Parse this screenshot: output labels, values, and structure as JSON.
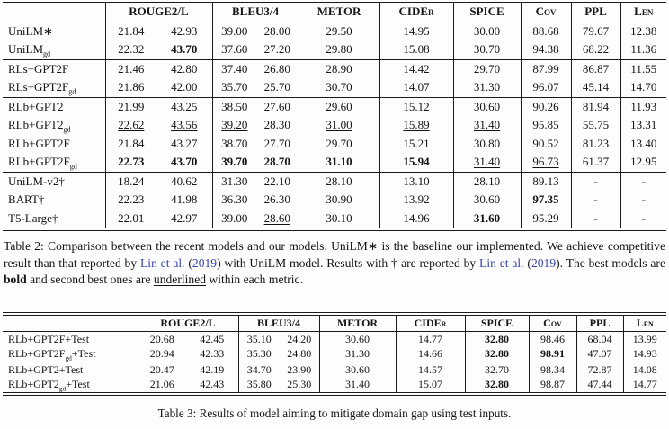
{
  "colors": {
    "citation": "#3545b0",
    "text": "#141414",
    "rule": "#1a1a1a"
  },
  "table2": {
    "headers": [
      {
        "label": "ROUGE2/L",
        "span": 2
      },
      {
        "label": "BLEU3/4",
        "span": 2
      },
      {
        "label": "METOR",
        "span": 1
      },
      {
        "label": "CIDEr",
        "span": 1
      },
      {
        "label": "SPICE",
        "span": 1
      },
      {
        "label": "Cov",
        "span": 1
      },
      {
        "label": "PPL",
        "span": 1
      },
      {
        "label": "Len",
        "span": 1
      }
    ],
    "rows": [
      {
        "label": [
          [
            "UniLM∗"
          ]
        ],
        "values": [
          "21.84",
          "42.93",
          "39.00",
          "28.00",
          "29.50",
          "14.95",
          "30.00",
          "88.68",
          "79.67",
          "12.38"
        ],
        "styles": [
          "",
          "",
          "",
          "",
          "",
          "",
          "",
          "",
          "",
          ""
        ]
      },
      {
        "label": [
          [
            "UniLM"
          ],
          [
            "gd",
            "sub"
          ]
        ],
        "values": [
          "22.32",
          "43.70",
          "37.60",
          "27.20",
          "29.80",
          "15.08",
          "30.70",
          "94.38",
          "68.22",
          "11.36"
        ],
        "styles": [
          "",
          "b",
          "",
          "",
          "",
          "",
          "",
          "",
          "",
          ""
        ],
        "sep": true
      },
      {
        "label": [
          [
            "RLs+GPT2F"
          ]
        ],
        "values": [
          "21.46",
          "42.80",
          "37.40",
          "26.80",
          "28.90",
          "14.42",
          "29.70",
          "87.99",
          "86.87",
          "11.55"
        ],
        "styles": [
          "",
          "",
          "",
          "",
          "",
          "",
          "",
          "",
          "",
          ""
        ]
      },
      {
        "label": [
          [
            "RLs+GPT2F"
          ],
          [
            "gd",
            "sub"
          ]
        ],
        "values": [
          "21.86",
          "42.00",
          "35.70",
          "25.70",
          "30.70",
          "14.07",
          "31.30",
          "96.07",
          "45.14",
          "14.70"
        ],
        "styles": [
          "",
          "",
          "",
          "",
          "",
          "",
          "",
          "",
          "",
          ""
        ],
        "sep": true
      },
      {
        "label": [
          [
            "RLb+GPT2"
          ]
        ],
        "values": [
          "21.99",
          "43.25",
          "38.50",
          "27.60",
          "29.60",
          "15.12",
          "30.60",
          "90.26",
          "81.94",
          "11.93"
        ],
        "styles": [
          "",
          "",
          "",
          "",
          "",
          "",
          "",
          "",
          "",
          ""
        ]
      },
      {
        "label": [
          [
            "RLb+GPT2"
          ],
          [
            "gd",
            "sub"
          ]
        ],
        "values": [
          "22.62",
          "43.56",
          "39.20",
          "28.30",
          "31.00",
          "15.89",
          "31.40",
          "95.85",
          "55.75",
          "13.31"
        ],
        "styles": [
          "u",
          "u",
          "u",
          "",
          "u",
          "u",
          "u",
          "",
          "",
          ""
        ]
      },
      {
        "label": [
          [
            "RLb+GPT2F"
          ]
        ],
        "values": [
          "21.84",
          "43.27",
          "38.70",
          "27.70",
          "29.70",
          "15.21",
          "30.80",
          "90.52",
          "81.23",
          "13.40"
        ],
        "styles": [
          "",
          "",
          "",
          "",
          "",
          "",
          "",
          "",
          "",
          ""
        ]
      },
      {
        "label": [
          [
            "RLb+GPT2F"
          ],
          [
            "gd",
            "sub"
          ]
        ],
        "values": [
          "22.73",
          "43.70",
          "39.70",
          "28.70",
          "31.10",
          "15.94",
          "31.40",
          "96.73",
          "61.37",
          "12.95"
        ],
        "styles": [
          "b",
          "b",
          "b",
          "b",
          "b",
          "b",
          "u",
          "u",
          "",
          ""
        ],
        "sep": true
      },
      {
        "label": [
          [
            "UniLM-v2†"
          ]
        ],
        "values": [
          "18.24",
          "40.62",
          "31.30",
          "22.10",
          "28.10",
          "13.10",
          "28.10",
          "89.13",
          "-",
          "-"
        ],
        "styles": [
          "",
          "",
          "",
          "",
          "",
          "",
          "",
          "",
          "",
          ""
        ]
      },
      {
        "label": [
          [
            "BART†"
          ]
        ],
        "values": [
          "22.23",
          "41.98",
          "36.30",
          "26.30",
          "30.90",
          "13.92",
          "30.60",
          "97.35",
          "-",
          "-"
        ],
        "styles": [
          "",
          "",
          "",
          "",
          "",
          "",
          "",
          "b",
          "",
          ""
        ]
      },
      {
        "label": [
          [
            "T5-Large†"
          ]
        ],
        "values": [
          "22.01",
          "42.97",
          "39.00",
          "28.60",
          "30.10",
          "14.96",
          "31.60",
          "95.29",
          "-",
          "-"
        ],
        "styles": [
          "",
          "",
          "",
          "u",
          "",
          "",
          "b",
          "",
          "",
          ""
        ]
      }
    ]
  },
  "table3": {
    "headers": [
      {
        "label": "ROUGE2/L",
        "span": 2
      },
      {
        "label": "BLEU3/4",
        "span": 2
      },
      {
        "label": "METOR",
        "span": 1
      },
      {
        "label": "CIDEr",
        "span": 1
      },
      {
        "label": "SPICE",
        "span": 1
      },
      {
        "label": "Cov",
        "span": 1
      },
      {
        "label": "PPL",
        "span": 1
      },
      {
        "label": "Len",
        "span": 1
      }
    ],
    "rows": [
      {
        "label": [
          [
            "RLb+GPT2F+Test"
          ]
        ],
        "values": [
          "20.68",
          "42.45",
          "35.10",
          "24.20",
          "30.60",
          "14.77",
          "32.80",
          "98.46",
          "68.04",
          "13.99"
        ],
        "styles": [
          "",
          "",
          "",
          "",
          "",
          "",
          "b",
          "",
          "",
          ""
        ]
      },
      {
        "label": [
          [
            "RLb+GPT2F"
          ],
          [
            "gd",
            "sub"
          ],
          [
            "+Test"
          ]
        ],
        "values": [
          "20.94",
          "42.33",
          "35.30",
          "24.80",
          "31.30",
          "14.66",
          "32.80",
          "98.91",
          "47.07",
          "14.93"
        ],
        "styles": [
          "",
          "",
          "",
          "",
          "",
          "",
          "b",
          "b",
          "",
          ""
        ],
        "sep": true
      },
      {
        "label": [
          [
            "RLb+GPT2+Test"
          ]
        ],
        "values": [
          "20.47",
          "42.19",
          "34.70",
          "23.90",
          "30.60",
          "14.57",
          "32.70",
          "98.34",
          "72.87",
          "14.08"
        ],
        "styles": [
          "",
          "",
          "",
          "",
          "",
          "",
          "",
          "",
          "",
          ""
        ]
      },
      {
        "label": [
          [
            "RLb+GPT2"
          ],
          [
            "gd",
            "sub"
          ],
          [
            "+Test"
          ]
        ],
        "values": [
          "21.06",
          "42.43",
          "35.80",
          "25.30",
          "31.40",
          "15.07",
          "32.80",
          "98.87",
          "47.44",
          "14.77"
        ],
        "styles": [
          "",
          "",
          "",
          "",
          "",
          "",
          "b",
          "",
          "",
          ""
        ]
      }
    ]
  },
  "captions": {
    "table2_segments": [
      {
        "t": "Table 2: Comparison between the recent models and our models. UniLM∗ is the baseline our implemented. We achieve competitive result than that reported by "
      },
      {
        "t": "Lin et al.",
        "c": true
      },
      {
        "t": " ("
      },
      {
        "t": "2019",
        "c": true
      },
      {
        "t": ") with UniLM model. Results with † are reported by "
      },
      {
        "t": "Lin et al.",
        "c": true
      },
      {
        "t": " ("
      },
      {
        "t": "2019",
        "c": true
      },
      {
        "t": "). The best models are "
      },
      {
        "t": "bold",
        "b": true
      },
      {
        "t": " and second best ones are "
      },
      {
        "t": "underlined",
        "u": true
      },
      {
        "t": " within each metric."
      }
    ],
    "table3": "Table 3: Results of model aiming to mitigate domain gap using test inputs."
  }
}
